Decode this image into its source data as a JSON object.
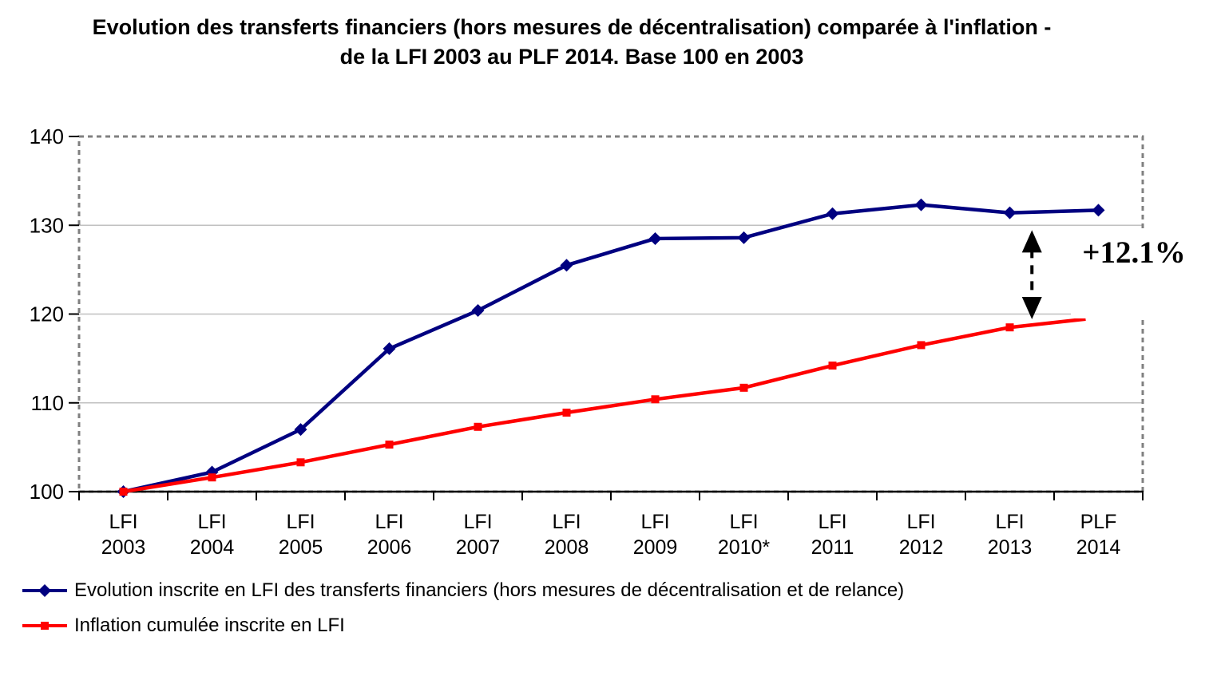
{
  "chart_data": {
    "type": "line",
    "title": "Evolution des transferts financiers (hors mesures de décentralisation) comparée à l'inflation - de la LFI 2003 au PLF 2014. Base 100 en 2003",
    "xlabel": "",
    "ylabel": "",
    "categories": [
      "LFI 2003",
      "LFI 2004",
      "LFI 2005",
      "LFI 2006",
      "LFI 2007",
      "LFI 2008",
      "LFI 2009",
      "LFI 2010*",
      "LFI 2011",
      "LFI 2012",
      "LFI 2013",
      "PLF 2014"
    ],
    "series": [
      {
        "name": "Evolution inscrite en LFI des transferts financiers (hors mesures de décentralisation et de relance)",
        "color": "#000080",
        "marker": "diamond",
        "values": [
          100,
          102.2,
          107.0,
          116.1,
          120.4,
          125.5,
          128.5,
          128.6,
          131.3,
          132.3,
          131.4,
          131.7
        ]
      },
      {
        "name": "Inflation cumulée inscrite en LFI",
        "color": "#ff0000",
        "marker": "square",
        "values": [
          100,
          101.6,
          103.3,
          105.3,
          107.3,
          108.9,
          110.4,
          111.7,
          114.2,
          116.5,
          118.5,
          119.6
        ]
      }
    ],
    "ylim": [
      100,
      140
    ],
    "yticks": [
      100,
      110,
      120,
      130,
      140
    ],
    "grid": "horizontal",
    "legend_position": "bottom-left",
    "annotation": {
      "text": "+12.1%",
      "meaning": "gap between the two series at PLF 2014",
      "between_categories": [
        "LFI 2013",
        "PLF 2014"
      ]
    },
    "colors": {
      "gridline": "#c0c0c0",
      "plot_border": "#808080",
      "axis": "#000000",
      "annotation_arrow": "#000000"
    }
  }
}
